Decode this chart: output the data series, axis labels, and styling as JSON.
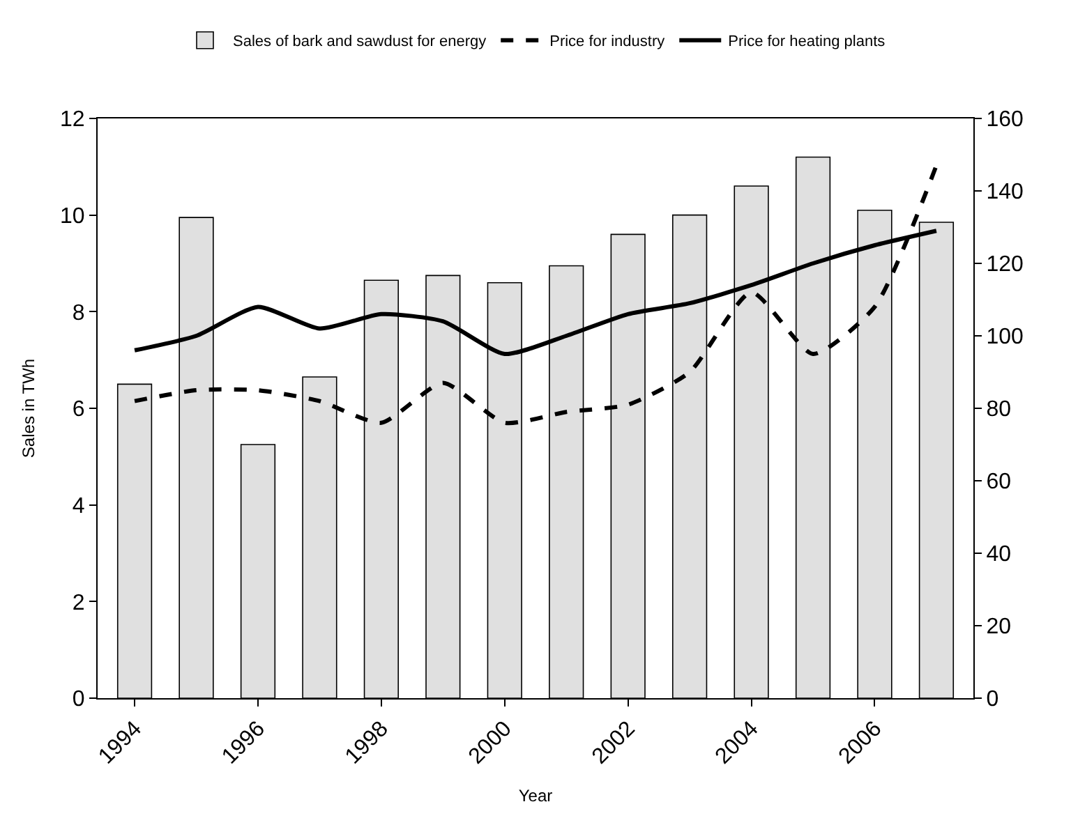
{
  "chart_data": {
    "type": "bar",
    "xlabel": "Year",
    "ylabel": "Sales in TWh",
    "x": [
      1994,
      1995,
      1996,
      1997,
      1998,
      1999,
      2000,
      2001,
      2002,
      2003,
      2004,
      2005,
      2006,
      2007
    ],
    "series": [
      {
        "name": "Sales of bark and sawdust for energy",
        "color": "#e0e0e0",
        "values": [
          6.5,
          9.95,
          5.25,
          6.65,
          8.65,
          8.75,
          8.6,
          8.95,
          9.6,
          10.0,
          10.6,
          11.2,
          10.1,
          9.85
        ]
      },
      {
        "name": "Price for industry",
        "type": "line",
        "axis": "y2",
        "line_style": "dashed",
        "color": "#000000",
        "values": [
          82,
          85,
          85,
          82,
          76,
          87,
          76,
          79,
          81,
          90,
          112,
          95,
          108,
          147
        ]
      },
      {
        "name": "Price for heating plants",
        "type": "line",
        "axis": "y2",
        "line_style": "solid",
        "color": "#000000",
        "values": [
          96,
          100,
          108,
          102,
          106,
          104,
          95,
          100,
          106,
          109,
          114,
          120,
          125,
          129
        ]
      }
    ],
    "xlim": [
      1993.4,
      2007.6
    ],
    "xticks": [
      1994,
      1996,
      1998,
      2000,
      2002,
      2004,
      2006
    ],
    "ylim": [
      0,
      12
    ],
    "yticks": [
      0,
      2,
      4,
      6,
      8,
      10,
      12
    ],
    "y2lim": [
      0,
      160
    ],
    "y2ticks": [
      0,
      20,
      40,
      60,
      80,
      100,
      120,
      140,
      160
    ],
    "legend": "top",
    "marker": "none"
  }
}
